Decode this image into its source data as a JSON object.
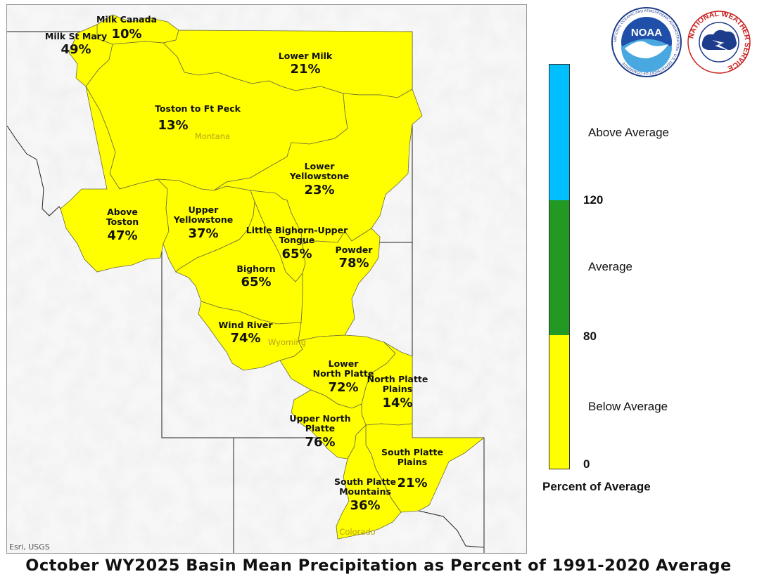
{
  "title": "October WY2025 Basin Mean Precipitation as Percent of 1991-2020 Average",
  "attribution": "Esri, USGS",
  "states": [
    {
      "id": "montana",
      "name": "Montana"
    },
    {
      "id": "wyoming",
      "name": "Wyoming"
    },
    {
      "id": "colorado",
      "name": "Colorado"
    }
  ],
  "basins": [
    {
      "id": "milk-canada",
      "name": "Milk Canada",
      "percent": "10%",
      "category": "Below Average"
    },
    {
      "id": "milk-st-mary",
      "name": "Milk St Mary",
      "percent": "49%",
      "category": "Below Average"
    },
    {
      "id": "lower-milk",
      "name": "Lower Milk",
      "percent": "21%",
      "category": "Below Average"
    },
    {
      "id": "toston-to-ft-peck",
      "name": "Toston to Ft Peck",
      "percent": "13%",
      "category": "Below Average"
    },
    {
      "id": "lower-yellowstone",
      "name": "Lower\nYellowstone",
      "percent": "23%",
      "category": "Below Average"
    },
    {
      "id": "above-toston",
      "name": "Above\nToston",
      "percent": "47%",
      "category": "Below Average"
    },
    {
      "id": "upper-yellowstone",
      "name": "Upper\nYellowstone",
      "percent": "37%",
      "category": "Below Average"
    },
    {
      "id": "little-bighorn-upper-tongue",
      "name": "Little Bighorn-Upper\nTongue",
      "percent": "65%",
      "category": "Below Average"
    },
    {
      "id": "powder",
      "name": "Powder",
      "percent": "78%",
      "category": "Below Average"
    },
    {
      "id": "bighorn",
      "name": "Bighorn",
      "percent": "65%",
      "category": "Below Average"
    },
    {
      "id": "wind-river",
      "name": "Wind River",
      "percent": "74%",
      "category": "Below Average"
    },
    {
      "id": "lower-north-platte",
      "name": "Lower\nNorth Platte",
      "percent": "72%",
      "category": "Below Average"
    },
    {
      "id": "north-platte-plains",
      "name": "North Platte\nPlains",
      "percent": "14%",
      "category": "Below Average"
    },
    {
      "id": "upper-north-platte",
      "name": "Upper North\nPlatte",
      "percent": "76%",
      "category": "Below Average"
    },
    {
      "id": "south-platte-plains",
      "name": "South Platte\nPlains",
      "percent": "21%",
      "category": "Below Average"
    },
    {
      "id": "south-platte-mountains",
      "name": "South Platte\nMountains",
      "percent": "36%",
      "category": "Below Average"
    }
  ],
  "legend": {
    "title": "Percent of Average",
    "categories": [
      {
        "label": "Above Average",
        "color": "#00BFFF"
      },
      {
        "label": "Average",
        "color": "#229922"
      },
      {
        "label": "Below Average",
        "color": "#FFFF00"
      }
    ],
    "ticks": [
      "120",
      "80",
      "0"
    ]
  },
  "logos": {
    "noaa": {
      "center_text": "NOAA",
      "ring_text": "NATIONAL OCEANIC AND ATMOSPHERIC ADMINISTRATION · U.S. DEPARTMENT OF COMMERCE"
    },
    "nws": {
      "ring_text": "NATIONAL WEATHER SERVICE"
    }
  }
}
